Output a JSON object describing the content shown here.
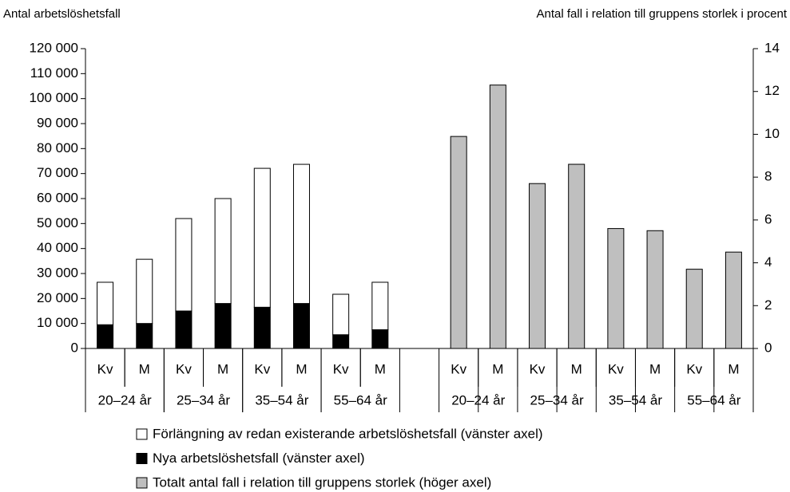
{
  "chart_data": {
    "type": "bar",
    "stacked": true,
    "y_label": "Antal arbetslöshetsfall",
    "y2_label": "Antal fall i relation till gruppens storlek i procent",
    "categories": [
      "Kv",
      "M",
      "Kv",
      "M",
      "Kv",
      "M",
      "Kv",
      "M",
      null,
      "Kv",
      "M",
      "Kv",
      "M",
      "Kv",
      "M",
      "Kv",
      "M"
    ],
    "groups": [
      "20–24 år",
      "25–34 år",
      "35–54 år",
      "55–64 år",
      "20–24 år",
      "25–34 år",
      "35–54 år",
      "55–64 år"
    ],
    "series": [
      {
        "name": "Förlängning av redan existerande arbetslöshetsfall (vänster axel)",
        "color": "#ffffff",
        "axis": "y",
        "values": [
          17000,
          25700,
          37000,
          42000,
          55600,
          55700,
          16200,
          19000,
          null,
          null,
          null,
          null,
          null,
          null,
          null,
          null,
          null
        ]
      },
      {
        "name": "Nya arbetslöshetsfall (vänster axel)",
        "color": "#000000",
        "axis": "y",
        "values": [
          9500,
          10000,
          15000,
          18000,
          16500,
          18000,
          5500,
          7500,
          null,
          null,
          null,
          null,
          null,
          null,
          null,
          null,
          null
        ]
      },
      {
        "name": "Totalt antal fall i relation till gruppens storlek (höger axel)",
        "color": "#bfbfbf",
        "axis": "y2",
        "values": [
          null,
          null,
          null,
          null,
          null,
          null,
          null,
          null,
          null,
          9.9,
          12.3,
          7.7,
          8.6,
          5.6,
          5.5,
          3.7,
          4.5
        ]
      }
    ],
    "ylim": [
      0,
      120000
    ],
    "yticks": [
      {
        "value": 0,
        "label": "0"
      },
      {
        "value": 10000,
        "label": "10 000"
      },
      {
        "value": 20000,
        "label": "20 000"
      },
      {
        "value": 30000,
        "label": "30 000"
      },
      {
        "value": 40000,
        "label": "40 000"
      },
      {
        "value": 50000,
        "label": "50 000"
      },
      {
        "value": 60000,
        "label": "60 000"
      },
      {
        "value": 70000,
        "label": "70 000"
      },
      {
        "value": 80000,
        "label": "80 000"
      },
      {
        "value": 90000,
        "label": "90 000"
      },
      {
        "value": 100000,
        "label": "100 000"
      },
      {
        "value": 110000,
        "label": "110 000"
      },
      {
        "value": 120000,
        "label": "120 000"
      }
    ],
    "y2lim": [
      0,
      14
    ],
    "y2ticks": [
      0,
      2,
      4,
      6,
      8,
      10,
      12,
      14
    ]
  }
}
